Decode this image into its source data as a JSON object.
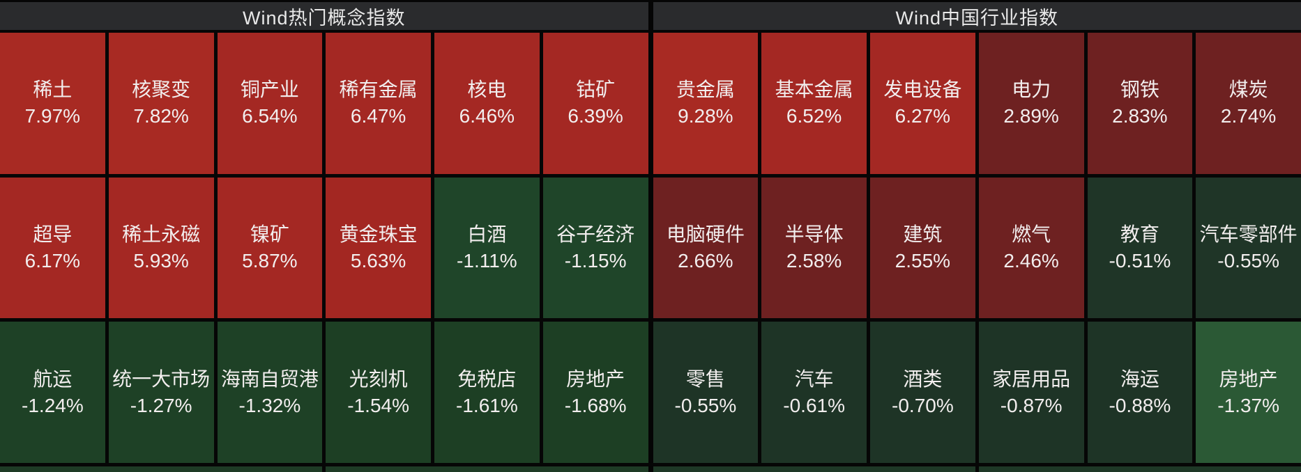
{
  "panels": [
    {
      "title": "Wind热门概念指数",
      "rows": [
        [
          {
            "label": "稀土",
            "change": "7.97%",
            "color": "#a82a23"
          },
          {
            "label": "核聚变",
            "change": "7.82%",
            "color": "#a82a23"
          },
          {
            "label": "铜产业",
            "change": "6.54%",
            "color": "#a42823"
          },
          {
            "label": "稀有金属",
            "change": "6.47%",
            "color": "#a42823"
          },
          {
            "label": "核电",
            "change": "6.46%",
            "color": "#a42823"
          },
          {
            "label": "钴矿",
            "change": "6.39%",
            "color": "#a42823"
          }
        ],
        [
          {
            "label": "超导",
            "change": "6.17%",
            "color": "#a42823"
          },
          {
            "label": "稀土永磁",
            "change": "5.93%",
            "color": "#a42823"
          },
          {
            "label": "镍矿",
            "change": "5.87%",
            "color": "#a42823"
          },
          {
            "label": "黄金珠宝",
            "change": "5.63%",
            "color": "#a32722"
          },
          {
            "label": "白酒",
            "change": "-1.11%",
            "color": "#1f4529"
          },
          {
            "label": "谷子经济",
            "change": "-1.15%",
            "color": "#1f4529"
          }
        ],
        [
          {
            "label": "航运",
            "change": "-1.24%",
            "color": "#1e4126"
          },
          {
            "label": "统一大市场",
            "change": "-1.27%",
            "color": "#1e4126"
          },
          {
            "label": "海南自贸港",
            "change": "-1.32%",
            "color": "#1e4126"
          },
          {
            "label": "光刻机",
            "change": "-1.54%",
            "color": "#1d3f24"
          },
          {
            "label": "免税店",
            "change": "-1.61%",
            "color": "#1d3f24"
          },
          {
            "label": "房地产",
            "change": "-1.68%",
            "color": "#1d3f24"
          }
        ]
      ]
    },
    {
      "title": "Wind中国行业指数",
      "rows": [
        [
          {
            "label": "贵金属",
            "change": "9.28%",
            "color": "#a82a23"
          },
          {
            "label": "基本金属",
            "change": "6.52%",
            "color": "#a42823"
          },
          {
            "label": "发电设备",
            "change": "6.27%",
            "color": "#a42823"
          },
          {
            "label": "电力",
            "change": "2.89%",
            "color": "#6e2121"
          },
          {
            "label": "钢铁",
            "change": "2.83%",
            "color": "#6e2121"
          },
          {
            "label": "煤炭",
            "change": "2.74%",
            "color": "#6e2121"
          }
        ],
        [
          {
            "label": "电脑硬件",
            "change": "2.66%",
            "color": "#6e2121"
          },
          {
            "label": "半导体",
            "change": "2.58%",
            "color": "#6e2121"
          },
          {
            "label": "建筑",
            "change": "2.55%",
            "color": "#6e2121"
          },
          {
            "label": "燃气",
            "change": "2.46%",
            "color": "#6e2121"
          },
          {
            "label": "教育",
            "change": "-0.51%",
            "color": "#1f3527"
          },
          {
            "label": "汽车零部件",
            "change": "-0.55%",
            "color": "#1f3527"
          }
        ],
        [
          {
            "label": "零售",
            "change": "-0.55%",
            "color": "#1e3426"
          },
          {
            "label": "汽车",
            "change": "-0.61%",
            "color": "#1e3426"
          },
          {
            "label": "酒类",
            "change": "-0.70%",
            "color": "#1e3426"
          },
          {
            "label": "家居用品",
            "change": "-0.87%",
            "color": "#1e3426"
          },
          {
            "label": "海运",
            "change": "-0.88%",
            "color": "#1e3426"
          },
          {
            "label": "房地产",
            "change": "-1.37%",
            "color": "#2b5935"
          }
        ]
      ]
    }
  ],
  "bottom_strip": {
    "panels": [
      {
        "cells": [
          "#1e3b25",
          "#1e3b25"
        ]
      },
      {
        "cells": [
          "#1e3826",
          "#1e3826"
        ]
      }
    ]
  },
  "colors": {
    "background": "#060606",
    "header_bg": "#2a2b2d",
    "header_text": "#e9e9e9",
    "tile_text": "#f2eeee",
    "strong_gain_red": "#a82a23",
    "gain_red": "#a42823",
    "mild_gain_dark_red": "#6e2121",
    "mild_loss_dark_green": "#1f3527",
    "loss_green": "#1e4126",
    "strong_loss_bright_green": "#2b5935"
  },
  "chart_data": [
    {
      "type": "heatmap",
      "title": "Wind热门概念指数",
      "value_unit": "percent_change",
      "tiles": [
        {
          "label": "稀土",
          "change_pct": 7.97
        },
        {
          "label": "核聚变",
          "change_pct": 7.82
        },
        {
          "label": "铜产业",
          "change_pct": 6.54
        },
        {
          "label": "稀有金属",
          "change_pct": 6.47
        },
        {
          "label": "核电",
          "change_pct": 6.46
        },
        {
          "label": "钴矿",
          "change_pct": 6.39
        },
        {
          "label": "超导",
          "change_pct": 6.17
        },
        {
          "label": "稀土永磁",
          "change_pct": 5.93
        },
        {
          "label": "镍矿",
          "change_pct": 5.87
        },
        {
          "label": "黄金珠宝",
          "change_pct": 5.63
        },
        {
          "label": "白酒",
          "change_pct": -1.11
        },
        {
          "label": "谷子经济",
          "change_pct": -1.15
        },
        {
          "label": "航运",
          "change_pct": -1.24
        },
        {
          "label": "统一大市场",
          "change_pct": -1.27
        },
        {
          "label": "海南自贸港",
          "change_pct": -1.32
        },
        {
          "label": "光刻机",
          "change_pct": -1.54
        },
        {
          "label": "免税店",
          "change_pct": -1.61
        },
        {
          "label": "房地产",
          "change_pct": -1.68
        }
      ],
      "layout": {
        "grid": "6x3",
        "color_rule": "red=gain, green=loss, intensity=magnitude"
      }
    },
    {
      "type": "heatmap",
      "title": "Wind中国行业指数",
      "value_unit": "percent_change",
      "tiles": [
        {
          "label": "贵金属",
          "change_pct": 9.28
        },
        {
          "label": "基本金属",
          "change_pct": 6.52
        },
        {
          "label": "发电设备",
          "change_pct": 6.27
        },
        {
          "label": "电力",
          "change_pct": 2.89
        },
        {
          "label": "钢铁",
          "change_pct": 2.83
        },
        {
          "label": "煤炭",
          "change_pct": 2.74
        },
        {
          "label": "电脑硬件",
          "change_pct": 2.66
        },
        {
          "label": "半导体",
          "change_pct": 2.58
        },
        {
          "label": "建筑",
          "change_pct": 2.55
        },
        {
          "label": "燃气",
          "change_pct": 2.46
        },
        {
          "label": "教育",
          "change_pct": -0.51
        },
        {
          "label": "汽车零部件",
          "change_pct": -0.55
        },
        {
          "label": "零售",
          "change_pct": -0.55
        },
        {
          "label": "汽车",
          "change_pct": -0.61
        },
        {
          "label": "酒类",
          "change_pct": -0.7
        },
        {
          "label": "家居用品",
          "change_pct": -0.87
        },
        {
          "label": "海运",
          "change_pct": -0.88
        },
        {
          "label": "房地产",
          "change_pct": -1.37
        }
      ],
      "layout": {
        "grid": "6x3",
        "color_rule": "red=gain, green=loss, intensity=magnitude"
      }
    }
  ]
}
